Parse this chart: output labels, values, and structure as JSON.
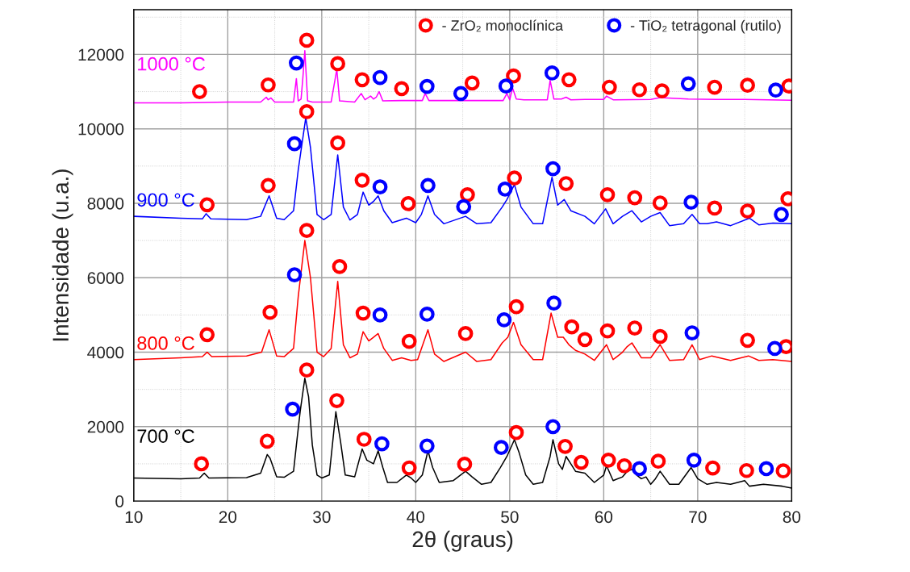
{
  "chart_data": {
    "type": "line",
    "xlabel": "2θ (graus)",
    "ylabel": "Intensidade (u.a.)",
    "xlim": [
      10,
      80
    ],
    "ylim": [
      0,
      13200
    ],
    "xticks": [
      10,
      {
        "value": 15,
        "label": null
      },
      20,
      {
        "value": 25,
        "label": null
      },
      30,
      {
        "value": 35,
        "label": null
      },
      40,
      {
        "value": 45,
        "label": null
      },
      50,
      {
        "value": 55,
        "label": null
      },
      60,
      {
        "value": 65,
        "label": null
      },
      70,
      {
        "value": 75,
        "label": null
      },
      80
    ],
    "yticks": [
      0,
      {
        "value": 1000,
        "label": null
      },
      2000,
      {
        "value": 3000,
        "label": null
      },
      4000,
      {
        "value": 5000,
        "label": null
      },
      6000,
      {
        "value": 7000,
        "label": null
      },
      8000,
      {
        "value": 9000,
        "label": null
      },
      10000,
      {
        "value": 11000,
        "label": null
      },
      12000,
      {
        "value": 13000,
        "label": null
      }
    ],
    "grid": true,
    "legend": "top right",
    "line_style": "solid",
    "series": [
      {
        "name": "1000 °C",
        "color": "#ff00ff",
        "marker": "none",
        "x": [
          10,
          15,
          20,
          23.5,
          24.1,
          24.3,
          24.6,
          25,
          27,
          27.3,
          27.5,
          27.8,
          28,
          28.2,
          28.5,
          29,
          31,
          31.4,
          31.6,
          31.9,
          33.5,
          34.2,
          34.6,
          35.2,
          35.5,
          35.8,
          36.1,
          36.5,
          38.5,
          40.7,
          41,
          41.4,
          44,
          45,
          49.3,
          49.7,
          50,
          50.3,
          50.7,
          51.5,
          54,
          54.3,
          54.7,
          55.5,
          56,
          56.5,
          58,
          60,
          60.3,
          61,
          65,
          66,
          69,
          72,
          75,
          80
        ],
        "values": [
          10700,
          10700,
          10720,
          10720,
          10850,
          10780,
          10830,
          10720,
          10720,
          11350,
          10750,
          10800,
          11400,
          12100,
          10750,
          10720,
          10720,
          11300,
          11600,
          10750,
          10720,
          10950,
          10780,
          10880,
          10800,
          10850,
          11000,
          10750,
          10760,
          10760,
          10950,
          10760,
          10760,
          10760,
          10760,
          10950,
          10780,
          11100,
          10800,
          10780,
          10780,
          11300,
          10800,
          10800,
          10850,
          10780,
          10790,
          10790,
          10880,
          10780,
          10790,
          10840,
          10800,
          10790,
          10790,
          10770
        ]
      },
      {
        "name": "900 °C",
        "color": "#0000ff",
        "marker": "none",
        "x": [
          10,
          15,
          17.3,
          17.7,
          18.2,
          22,
          23.5,
          24.4,
          25.2,
          26,
          27,
          27.5,
          28.3,
          28.8,
          29.5,
          30.2,
          31,
          31.7,
          32.3,
          33,
          33.8,
          34.4,
          35,
          35.5,
          36,
          36.6,
          37.5,
          39,
          40,
          40.6,
          41.3,
          42,
          43,
          45.3,
          46.5,
          48,
          49.2,
          49.7,
          50.5,
          51.2,
          52.5,
          53.5,
          54.5,
          55.1,
          55.8,
          56.5,
          58,
          59,
          60.2,
          61,
          62,
          63,
          64,
          65,
          66,
          67,
          68.5,
          69.4,
          70.2,
          71,
          72,
          73.5,
          75.5,
          76.5,
          78,
          80
        ],
        "values": [
          7650,
          7600,
          7580,
          7720,
          7580,
          7560,
          7650,
          8200,
          7600,
          7560,
          7800,
          8900,
          10300,
          9500,
          7700,
          7560,
          7700,
          9300,
          7900,
          7550,
          7700,
          8300,
          7950,
          8050,
          8200,
          7800,
          7480,
          7600,
          7480,
          7700,
          8200,
          7700,
          7450,
          7650,
          7450,
          7480,
          7900,
          8100,
          8500,
          7900,
          7450,
          7450,
          8700,
          7950,
          8100,
          7800,
          7650,
          7450,
          7850,
          7450,
          7650,
          7800,
          7500,
          7650,
          7750,
          7400,
          7450,
          7700,
          7450,
          7450,
          7500,
          7400,
          7600,
          7420,
          7470,
          7450
        ]
      },
      {
        "name": "800 °C",
        "color": "#ff0000",
        "marker": "none",
        "x": [
          10,
          15,
          17.3,
          17.8,
          18.3,
          22,
          23.6,
          24.4,
          25.2,
          26,
          27,
          27.5,
          28.2,
          28.8,
          29.5,
          30.2,
          31,
          31.7,
          32.3,
          33,
          33.8,
          34.4,
          35,
          35.5,
          36,
          36.6,
          37.5,
          38.5,
          39.5,
          40.2,
          41.3,
          42,
          43,
          45.3,
          46.5,
          48,
          49.2,
          49.8,
          50.4,
          51.2,
          52.5,
          53.5,
          54.4,
          55.1,
          55.7,
          56.3,
          57,
          58,
          59,
          60.3,
          61,
          62,
          62.5,
          63,
          64,
          65,
          66,
          67,
          68.5,
          69.4,
          70.2,
          71.5,
          73.5,
          75.4,
          76.5,
          78,
          80
        ],
        "values": [
          3800,
          3850,
          3880,
          4000,
          3880,
          3900,
          4000,
          4600,
          3900,
          3880,
          4100,
          5500,
          7000,
          6000,
          4000,
          3880,
          4100,
          5900,
          4200,
          3850,
          3950,
          4550,
          4300,
          4400,
          4500,
          4100,
          3780,
          3850,
          3780,
          3800,
          4600,
          3950,
          3750,
          4000,
          3750,
          3800,
          4250,
          4400,
          4800,
          4200,
          3800,
          3800,
          5050,
          4400,
          4400,
          4200,
          4050,
          3950,
          3780,
          4200,
          3800,
          4000,
          4150,
          4250,
          3850,
          3850,
          4200,
          3780,
          3800,
          4200,
          3800,
          3900,
          3780,
          3900,
          3780,
          3800,
          3750
        ]
      },
      {
        "name": "700 °C",
        "color": "#000000",
        "marker": "none",
        "x": [
          10,
          15,
          17,
          17.5,
          18,
          22,
          23.5,
          24.2,
          24.5,
          25.2,
          26,
          27,
          27.3,
          27.7,
          28.2,
          28.6,
          29,
          29.5,
          30,
          30.8,
          31.5,
          32,
          32.5,
          33.5,
          34.3,
          34.8,
          35.5,
          36,
          36.5,
          37,
          38,
          39,
          39.5,
          40,
          40.7,
          41.3,
          41.8,
          42.5,
          44,
          45.3,
          46,
          47,
          48,
          49,
          49.7,
          50.5,
          51,
          51.7,
          52.5,
          53.5,
          54.3,
          54.6,
          55.2,
          55.6,
          56,
          56.5,
          57,
          58,
          59,
          60,
          60.3,
          61,
          62,
          62.5,
          63,
          63.5,
          64,
          64.5,
          65,
          65.5,
          66,
          67,
          68,
          69.3,
          70,
          71,
          72,
          73.5,
          75,
          75.5,
          77,
          79,
          80
        ],
        "values": [
          620,
          600,
          620,
          750,
          620,
          630,
          750,
          1250,
          1150,
          650,
          640,
          800,
          1500,
          2400,
          3300,
          2800,
          1500,
          700,
          620,
          700,
          2400,
          1600,
          700,
          650,
          1400,
          1100,
          1000,
          1350,
          900,
          500,
          500,
          700,
          620,
          500,
          700,
          1350,
          900,
          500,
          550,
          800,
          650,
          450,
          500,
          900,
          1200,
          1650,
          1300,
          700,
          450,
          500,
          1200,
          1650,
          1000,
          850,
          1200,
          1000,
          800,
          750,
          500,
          700,
          950,
          550,
          650,
          800,
          850,
          700,
          600,
          650,
          450,
          600,
          800,
          450,
          450,
          900,
          600,
          450,
          500,
          450,
          550,
          400,
          450,
          400,
          350
        ]
      },
      {
        "name": "- ZrO₂ monoclínica",
        "type": "scatter",
        "color": "#ff0000",
        "marker": "circle",
        "x": [
          17,
          24.3,
          28.4,
          31.7,
          34.3,
          38.5,
          46,
          50.4,
          56.3,
          60.6,
          63.8,
          66.2,
          71.8,
          75.3,
          79.7,
          17.8,
          24.3,
          28.4,
          31.7,
          34.3,
          39.2,
          45.5,
          50.5,
          56,
          60.4,
          63.3,
          66,
          71.8,
          75.3,
          79.6,
          17.8,
          24.5,
          28.4,
          31.9,
          34.4,
          39.3,
          45.3,
          50.7,
          56.6,
          58,
          60.4,
          63.3,
          66,
          75.3,
          79.4,
          17.2,
          24.2,
          28.4,
          31.6,
          34.5,
          39.3,
          45.2,
          50.7,
          55.9,
          57.6,
          60.5,
          62.2,
          65.8,
          71.6,
          75.2,
          79.1
        ],
        "values": [
          11000,
          11180,
          12380,
          11750,
          11320,
          11080,
          11230,
          11420,
          11320,
          11120,
          11050,
          11020,
          11120,
          11170,
          11150,
          7960,
          8480,
          10460,
          9620,
          8620,
          7990,
          8230,
          8680,
          8530,
          8230,
          8150,
          8010,
          7870,
          7790,
          8120,
          4470,
          5070,
          7270,
          6300,
          5050,
          4290,
          4500,
          5220,
          4680,
          4340,
          4570,
          4650,
          4420,
          4320,
          4150,
          1000,
          1610,
          3520,
          2700,
          1660,
          890,
          990,
          1840,
          1470,
          1040,
          1100,
          950,
          1070,
          890,
          820,
          810
        ]
      },
      {
        "name": "- TiO₂ tetragonal (rutilo)",
        "type": "scatter",
        "color": "#0000ff",
        "marker": "circle",
        "x": [
          27.3,
          36.2,
          41.2,
          44.8,
          49.6,
          54.5,
          69,
          78.3,
          27.1,
          36.2,
          41.3,
          45.1,
          49.5,
          54.6,
          69.3,
          78.9,
          27.1,
          36.2,
          41.2,
          49.4,
          54.7,
          69.4,
          78.2,
          26.9,
          36.4,
          41.2,
          49.1,
          54.6,
          63.8,
          69.6,
          77.3
        ],
        "values": [
          11770,
          11380,
          11140,
          10950,
          11150,
          11500,
          11210,
          11040,
          9600,
          8440,
          8480,
          7910,
          8380,
          8930,
          8030,
          7700,
          6080,
          5000,
          5020,
          4870,
          5320,
          4520,
          4100,
          2470,
          1540,
          1480,
          1440,
          2000,
          870,
          1100,
          870
        ]
      }
    ]
  }
}
